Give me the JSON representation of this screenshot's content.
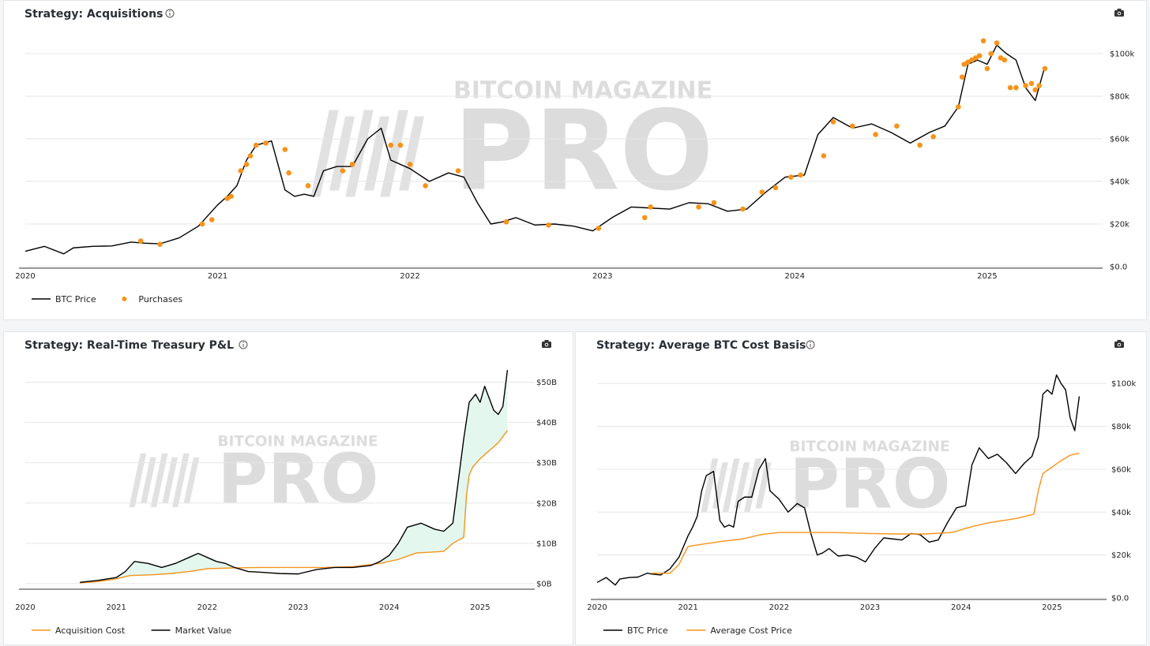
{
  "colors": {
    "price": "#000000",
    "accent": "#f7931a",
    "fill": "#e3f7ef"
  },
  "watermark": {
    "line1": "BITCOIN MAGAZINE",
    "line2": "PRO"
  },
  "chart_data": [
    {
      "id": "acquisitions",
      "type": "line",
      "title": "Strategy: Acquisitions",
      "icons": [
        "info-icon",
        "camera-icon"
      ],
      "x_ticks": [
        "2020",
        "2021",
        "2022",
        "2023",
        "2024",
        "2025"
      ],
      "xlim": [
        2020.0,
        2025.6
      ],
      "y_ticks": [
        {
          "value": 0,
          "label": "$0.0"
        },
        {
          "value": 20000,
          "label": "$20k"
        },
        {
          "value": 40000,
          "label": "$40k"
        },
        {
          "value": 60000,
          "label": "$60k"
        },
        {
          "value": 80000,
          "label": "$80k"
        },
        {
          "value": 100000,
          "label": "$100k"
        }
      ],
      "ylim": [
        0,
        110000
      ],
      "legend": [
        "BTC Price",
        "Purchases"
      ],
      "legend_position": "bottom-left",
      "series": [
        {
          "name": "BTC Price",
          "type": "line",
          "color": "#000000",
          "x": [
            2020.0,
            2020.1,
            2020.2,
            2020.25,
            2020.35,
            2020.45,
            2020.55,
            2020.62,
            2020.7,
            2020.8,
            2020.9,
            2021.0,
            2021.05,
            2021.1,
            2021.15,
            2021.2,
            2021.28,
            2021.35,
            2021.4,
            2021.45,
            2021.5,
            2021.55,
            2021.62,
            2021.7,
            2021.78,
            2021.85,
            2021.9,
            2022.0,
            2022.1,
            2022.2,
            2022.28,
            2022.35,
            2022.42,
            2022.48,
            2022.55,
            2022.65,
            2022.75,
            2022.85,
            2022.95,
            2023.05,
            2023.15,
            2023.25,
            2023.35,
            2023.45,
            2023.55,
            2023.65,
            2023.75,
            2023.85,
            2023.95,
            2024.05,
            2024.12,
            2024.2,
            2024.3,
            2024.4,
            2024.5,
            2024.6,
            2024.7,
            2024.78,
            2024.85,
            2024.9,
            2024.95,
            2025.0,
            2025.05,
            2025.1,
            2025.15,
            2025.2,
            2025.25,
            2025.3
          ],
          "values": [
            7200,
            9500,
            6000,
            8800,
            9500,
            9700,
            11500,
            11000,
            10700,
            13500,
            19000,
            29000,
            33000,
            38000,
            50000,
            57000,
            59000,
            36000,
            33000,
            34000,
            33000,
            45000,
            47000,
            47000,
            60000,
            65000,
            50000,
            46000,
            40000,
            44000,
            42000,
            30000,
            20000,
            21000,
            23000,
            19500,
            20000,
            19000,
            16800,
            23000,
            28000,
            27500,
            27000,
            30000,
            29500,
            26000,
            27000,
            35000,
            42000,
            43000,
            62000,
            70000,
            65000,
            67000,
            63000,
            58000,
            63000,
            66000,
            75000,
            95000,
            97000,
            95000,
            104000,
            100000,
            97000,
            84000,
            78000,
            94000
          ]
        },
        {
          "name": "Purchases",
          "type": "scatter",
          "color": "#f7931a",
          "x": [
            2020.6,
            2020.7,
            2020.92,
            2020.97,
            2021.05,
            2021.07,
            2021.12,
            2021.15,
            2021.17,
            2021.2,
            2021.25,
            2021.35,
            2021.37,
            2021.47,
            2021.65,
            2021.7,
            2021.9,
            2021.95,
            2022.0,
            2022.08,
            2022.25,
            2022.5,
            2022.72,
            2022.98,
            2023.22,
            2023.25,
            2023.5,
            2023.58,
            2023.73,
            2023.83,
            2023.9,
            2023.98,
            2024.03,
            2024.15,
            2024.2,
            2024.3,
            2024.42,
            2024.53,
            2024.65,
            2024.72,
            2024.85,
            2024.87,
            2024.88,
            2024.9,
            2024.92,
            2024.94,
            2024.96,
            2024.98,
            2025.0,
            2025.02,
            2025.05,
            2025.07,
            2025.09,
            2025.12,
            2025.15,
            2025.2,
            2025.23,
            2025.25,
            2025.27,
            2025.3
          ],
          "values": [
            12000,
            10500,
            20000,
            22000,
            32000,
            33000,
            45000,
            48000,
            52000,
            57000,
            58000,
            55000,
            44000,
            38000,
            45000,
            48000,
            57000,
            57000,
            48000,
            38000,
            45000,
            21000,
            19500,
            18000,
            23000,
            28000,
            28000,
            30000,
            27000,
            35000,
            37000,
            42000,
            43000,
            52000,
            68000,
            66000,
            62000,
            66000,
            57000,
            61000,
            75000,
            89000,
            95000,
            96000,
            97000,
            98000,
            99000,
            106000,
            93000,
            100000,
            105000,
            98000,
            97000,
            84000,
            84000,
            85000,
            86000,
            83000,
            85000,
            93000
          ]
        }
      ]
    },
    {
      "id": "treasury-pnl",
      "type": "area",
      "title": "Strategy: Real-Time Treasury P&L",
      "icons": [
        "info-icon",
        "camera-icon"
      ],
      "x_ticks": [
        "2020",
        "2021",
        "2022",
        "2023",
        "2024",
        "2025"
      ],
      "xlim": [
        2020.0,
        2025.6
      ],
      "y_ticks": [
        {
          "value": 0,
          "label": "$0B"
        },
        {
          "value": 10,
          "label": "$10B"
        },
        {
          "value": 20,
          "label": "$20B"
        },
        {
          "value": 30,
          "label": "$30B"
        },
        {
          "value": 40,
          "label": "$40B"
        },
        {
          "value": 50,
          "label": "$50B"
        }
      ],
      "ylim": [
        -1,
        55
      ],
      "legend": [
        "Acquisition Cost",
        "Market Value"
      ],
      "legend_position": "bottom-left",
      "series": [
        {
          "name": "Acquisition Cost",
          "type": "line",
          "color": "#f7931a",
          "x": [
            2020.6,
            2020.8,
            2021.0,
            2021.15,
            2021.4,
            2021.6,
            2021.8,
            2022.0,
            2022.3,
            2022.6,
            2023.0,
            2023.3,
            2023.6,
            2023.9,
            2024.1,
            2024.3,
            2024.6,
            2024.7,
            2024.82,
            2024.85,
            2024.88,
            2024.92,
            2025.0,
            2025.1,
            2025.2,
            2025.3
          ],
          "values": [
            0.2,
            0.5,
            1.2,
            2.0,
            2.2,
            2.5,
            3.0,
            3.7,
            3.9,
            4.0,
            4.0,
            4.0,
            4.2,
            5.0,
            6.0,
            7.6,
            8.0,
            10.0,
            11.5,
            22.0,
            27.0,
            29.0,
            31.0,
            33.0,
            35.0,
            38.0
          ]
        },
        {
          "name": "Market Value",
          "type": "line",
          "color": "#000000",
          "x": [
            2020.6,
            2020.8,
            2021.0,
            2021.1,
            2021.2,
            2021.35,
            2021.5,
            2021.65,
            2021.8,
            2021.9,
            2022.0,
            2022.1,
            2022.2,
            2022.3,
            2022.45,
            2022.6,
            2022.8,
            2023.0,
            2023.2,
            2023.4,
            2023.6,
            2023.8,
            2023.9,
            2024.0,
            2024.1,
            2024.2,
            2024.35,
            2024.5,
            2024.6,
            2024.7,
            2024.82,
            2024.88,
            2024.95,
            2025.0,
            2025.05,
            2025.1,
            2025.15,
            2025.2,
            2025.25,
            2025.3
          ],
          "values": [
            0.3,
            0.8,
            1.5,
            3.0,
            5.5,
            5.0,
            4.0,
            5.0,
            6.5,
            7.5,
            6.5,
            5.5,
            5.0,
            4.0,
            3.0,
            2.8,
            2.5,
            2.4,
            3.5,
            4.0,
            4.0,
            4.5,
            5.5,
            7.0,
            10.0,
            14.0,
            15.0,
            13.5,
            13.0,
            15.0,
            36.0,
            45.0,
            47.0,
            45.0,
            49.0,
            46.0,
            43.0,
            42.0,
            44.0,
            53.0
          ]
        }
      ]
    },
    {
      "id": "cost-basis",
      "type": "line",
      "title": "Strategy: Average BTC Cost Basis",
      "icons": [
        "info-icon",
        "camera-icon"
      ],
      "x_ticks": [
        "2020",
        "2021",
        "2022",
        "2023",
        "2024",
        "2025"
      ],
      "xlim": [
        2020.0,
        2025.6
      ],
      "y_ticks": [
        {
          "value": 0,
          "label": "$0.0"
        },
        {
          "value": 20000,
          "label": "$20k"
        },
        {
          "value": 40000,
          "label": "$40k"
        },
        {
          "value": 60000,
          "label": "$60k"
        },
        {
          "value": 80000,
          "label": "$80k"
        },
        {
          "value": 100000,
          "label": "$100k"
        }
      ],
      "ylim": [
        0,
        110000
      ],
      "legend": [
        "BTC Price",
        "Average Cost Price"
      ],
      "legend_position": "bottom-left",
      "series": [
        {
          "name": "BTC Price",
          "type": "line",
          "color": "#000000",
          "x": [
            2020.0,
            2020.1,
            2020.2,
            2020.25,
            2020.35,
            2020.45,
            2020.55,
            2020.62,
            2020.7,
            2020.8,
            2020.9,
            2021.0,
            2021.05,
            2021.1,
            2021.15,
            2021.2,
            2021.28,
            2021.35,
            2021.4,
            2021.45,
            2021.5,
            2021.55,
            2021.62,
            2021.7,
            2021.78,
            2021.85,
            2021.9,
            2022.0,
            2022.1,
            2022.2,
            2022.28,
            2022.35,
            2022.42,
            2022.48,
            2022.55,
            2022.65,
            2022.75,
            2022.85,
            2022.95,
            2023.05,
            2023.15,
            2023.25,
            2023.35,
            2023.45,
            2023.55,
            2023.65,
            2023.75,
            2023.85,
            2023.95,
            2024.05,
            2024.12,
            2024.2,
            2024.3,
            2024.4,
            2024.5,
            2024.6,
            2024.7,
            2024.78,
            2024.85,
            2024.9,
            2024.95,
            2025.0,
            2025.05,
            2025.1,
            2025.15,
            2025.2,
            2025.25,
            2025.3
          ],
          "values": [
            7200,
            9500,
            6000,
            8800,
            9500,
            9700,
            11500,
            11000,
            10700,
            13500,
            19000,
            29000,
            33000,
            38000,
            50000,
            57000,
            59000,
            36000,
            33000,
            34000,
            33000,
            45000,
            47000,
            47000,
            60000,
            65000,
            50000,
            46000,
            40000,
            44000,
            42000,
            30000,
            20000,
            21000,
            23000,
            19500,
            20000,
            19000,
            16800,
            23000,
            28000,
            27500,
            27000,
            30000,
            29500,
            26000,
            27000,
            35000,
            42000,
            43000,
            62000,
            70000,
            65000,
            67000,
            63000,
            58000,
            63000,
            66000,
            75000,
            95000,
            97000,
            95000,
            104000,
            100000,
            97000,
            84000,
            78000,
            94000
          ]
        },
        {
          "name": "Average Cost Price",
          "type": "line",
          "color": "#f7931a",
          "x": [
            2020.6,
            2020.8,
            2020.9,
            2020.95,
            2021.0,
            2021.15,
            2021.4,
            2021.6,
            2021.8,
            2022.0,
            2022.3,
            2022.6,
            2023.0,
            2023.3,
            2023.6,
            2023.9,
            2024.1,
            2024.3,
            2024.6,
            2024.8,
            2024.85,
            2024.9,
            2025.0,
            2025.1,
            2025.2,
            2025.3
          ],
          "values": [
            11500,
            11500,
            15500,
            20000,
            24000,
            25000,
            26500,
            27500,
            29500,
            30500,
            30500,
            30500,
            30000,
            29800,
            29800,
            30500,
            33000,
            35000,
            37000,
            39000,
            50000,
            58000,
            61000,
            64000,
            66500,
            67500
          ]
        }
      ]
    }
  ]
}
